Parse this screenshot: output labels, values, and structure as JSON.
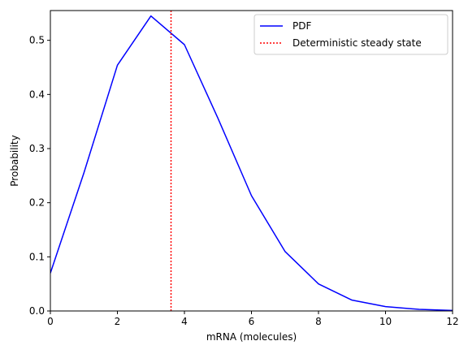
{
  "chart_data": {
    "type": "line",
    "title": "",
    "xlabel": "mRNA (molecules)",
    "ylabel": "Probability",
    "xlim": [
      0,
      12
    ],
    "ylim": [
      0,
      0.555
    ],
    "xticks": [
      0,
      2,
      4,
      6,
      8,
      10,
      12
    ],
    "yticks": [
      0.0,
      0.1,
      0.2,
      0.3,
      0.4,
      0.5
    ],
    "xtick_labels": [
      "0",
      "2",
      "4",
      "6",
      "8",
      "10",
      "12"
    ],
    "ytick_labels": [
      "0.0",
      "0.1",
      "0.2",
      "0.3",
      "0.4",
      "0.5"
    ],
    "grid": false,
    "legend_position": "top-right",
    "series": [
      {
        "name": "PDF",
        "color": "#0000ff",
        "style": "solid",
        "x": [
          0,
          1,
          2,
          3,
          4,
          5,
          6,
          7,
          8,
          9,
          10,
          11,
          12
        ],
        "y": [
          0.07,
          0.255,
          0.454,
          0.545,
          0.492,
          0.356,
          0.213,
          0.11,
          0.05,
          0.02,
          0.008,
          0.003,
          0.001
        ]
      }
    ],
    "vlines": [
      {
        "name": "Deterministic steady state",
        "color": "#ff0000",
        "style": "dotted",
        "x": 3.6
      }
    ]
  }
}
